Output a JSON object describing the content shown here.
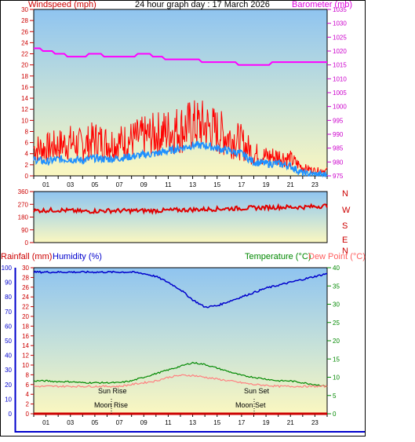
{
  "header": {
    "windspeed_label": "Windspeed (mph)",
    "title": "24 hour graph day : 17 March 2026",
    "barometer_label": "Barometer (mb)"
  },
  "lower_header": {
    "rainfall_label": "Rainfall (mm)",
    "humidity_label": "Humidity (%)",
    "temperature_label": "Temperature (°C)",
    "dewpoint_label": "Dew Point (°C)"
  },
  "annotations": {
    "sun_rise": "Sun Rise",
    "sun_set": "Sun Set",
    "moon_rise": "Moon Rise",
    "moon_set": "Moon Set"
  },
  "colors": {
    "wind_gust": "#ff0000",
    "wind_avg": "#1e90ff",
    "barometer": "#ff00ff",
    "wind_dir": "#e00000",
    "humidity": "#0000cc",
    "temperature": "#008800",
    "dew_point": "#ff8080",
    "rainfall": "#cc0000",
    "plot_top": "#8fc4f0",
    "plot_bottom": "#fbf7c0"
  },
  "chart_data": [
    {
      "type": "line",
      "title": "24 hour graph day : 17 March 2026",
      "ylabel": "Windspeed (mph)",
      "y2label": "Barometer (mb)",
      "x_ticks": [
        "01",
        "03",
        "05",
        "07",
        "09",
        "11",
        "13",
        "15",
        "17",
        "19",
        "21",
        "23"
      ],
      "y_ticks": [
        0,
        2,
        4,
        6,
        8,
        10,
        12,
        14,
        16,
        18,
        20,
        22,
        24,
        26,
        28,
        30
      ],
      "y2_ticks": [
        975,
        980,
        985,
        990,
        995,
        1000,
        1005,
        1010,
        1015,
        1020,
        1025,
        1030,
        1035
      ],
      "ylim": [
        0,
        30
      ],
      "y2lim": [
        975,
        1035
      ],
      "hours": [
        0,
        1,
        2,
        3,
        4,
        5,
        6,
        7,
        8,
        9,
        10,
        11,
        12,
        13,
        14,
        15,
        16,
        17,
        18,
        19,
        20,
        21,
        22,
        23,
        24
      ],
      "series": [
        {
          "name": "Windspeed (mph)",
          "axis": "left",
          "values": [
            3,
            2.5,
            3,
            3,
            2.8,
            3.2,
            3,
            3.2,
            3.5,
            3.8,
            4,
            4.5,
            5,
            5.5,
            5.5,
            5,
            4.5,
            4,
            2.5,
            2.2,
            2.2,
            1.8,
            0.4,
            0.2,
            0.2
          ]
        },
        {
          "name": "Gust",
          "axis": "left",
          "values": [
            5,
            5,
            5.5,
            6,
            5.5,
            6.5,
            6,
            6,
            6.5,
            7,
            7.5,
            8,
            8.5,
            9,
            9,
            8,
            7,
            6,
            4,
            3.5,
            3.5,
            3,
            1.5,
            1,
            1
          ]
        },
        {
          "name": "Barometer (mb)",
          "axis": "right",
          "values": [
            1021,
            1020,
            1019,
            1018,
            1018,
            1019,
            1018,
            1018,
            1018,
            1019,
            1018,
            1017,
            1017,
            1017,
            1016,
            1016,
            1016,
            1015,
            1015,
            1015,
            1016,
            1016,
            1016,
            1016,
            1016
          ]
        }
      ]
    },
    {
      "type": "line",
      "ylabel": "Wind direction",
      "y_ticks": [
        0,
        90,
        180,
        270,
        360
      ],
      "compass_labels": [
        "N",
        "W",
        "S",
        "E",
        "N"
      ],
      "ylim": [
        0,
        360
      ],
      "hours": [
        0,
        2,
        4,
        6,
        8,
        10,
        12,
        14,
        16,
        18,
        20,
        22,
        24
      ],
      "series": [
        {
          "name": "Direction",
          "values": [
            225,
            230,
            220,
            225,
            225,
            225,
            230,
            235,
            240,
            245,
            250,
            250,
            260
          ]
        }
      ]
    },
    {
      "type": "line",
      "y_left_humidity_ticks": [
        0,
        10,
        20,
        30,
        40,
        50,
        60,
        70,
        80,
        90,
        100
      ],
      "y_left_rain_ticks": [
        0,
        2,
        4,
        6,
        8,
        10,
        12,
        14,
        16,
        18,
        20,
        22,
        24,
        26,
        28,
        30
      ],
      "y_right_ticks": [
        0,
        5,
        10,
        15,
        20,
        25,
        30,
        35,
        40
      ],
      "x_ticks": [
        "01",
        "03",
        "05",
        "07",
        "09",
        "11",
        "13",
        "15",
        "17",
        "19",
        "21",
        "23"
      ],
      "hours": [
        0,
        1,
        2,
        3,
        4,
        5,
        6,
        7,
        8,
        9,
        10,
        11,
        12,
        13,
        14,
        15,
        16,
        17,
        18,
        19,
        20,
        21,
        22,
        23,
        24
      ],
      "series": [
        {
          "name": "Humidity (%)",
          "values": [
            97,
            97,
            97,
            97,
            97,
            97,
            97,
            97,
            97,
            96,
            94,
            90,
            85,
            78,
            73,
            74,
            77,
            80,
            83,
            86,
            88,
            90,
            92,
            94,
            96
          ]
        },
        {
          "name": "Temperature (°C)",
          "values": [
            9,
            9,
            8.8,
            8.8,
            8.5,
            8.5,
            8.5,
            8.5,
            9,
            10,
            11,
            12,
            13,
            14,
            13.5,
            12.5,
            11.5,
            10.5,
            10,
            9.5,
            9,
            9,
            8.5,
            8,
            7.5
          ]
        },
        {
          "name": "Dew Point (°C)",
          "values": [
            7.5,
            7.5,
            7.5,
            7.5,
            7.5,
            7.5,
            7.5,
            7.5,
            8,
            8.5,
            9,
            10,
            10.5,
            10.5,
            10,
            9.5,
            9,
            8.5,
            8,
            7.8,
            7.5,
            7.5,
            7.5,
            7.5,
            7.5
          ]
        },
        {
          "name": "Rainfall (mm)",
          "values": [
            0,
            0,
            0,
            0,
            0,
            0,
            0,
            0,
            0,
            0,
            0,
            0,
            0,
            0,
            0,
            0,
            0,
            0,
            0,
            0,
            0,
            0,
            0,
            0,
            0
          ]
        }
      ]
    }
  ]
}
